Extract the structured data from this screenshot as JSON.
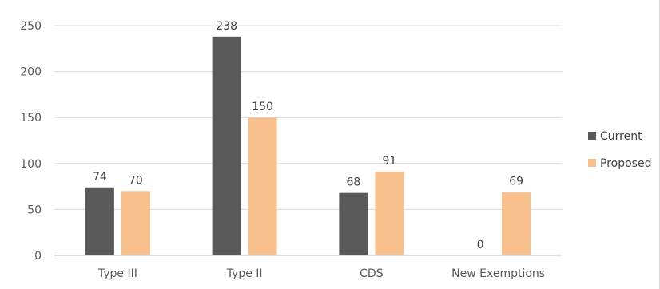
{
  "chart_data": {
    "type": "bar",
    "categories": [
      "Type III",
      "Type II",
      "CDS",
      "New Exemptions"
    ],
    "series": [
      {
        "name": "Current",
        "values": [
          74,
          238,
          68,
          0
        ],
        "color": "#595959"
      },
      {
        "name": "Proposed",
        "values": [
          70,
          150,
          91,
          69
        ],
        "color": "#f8c08c"
      }
    ],
    "title": "",
    "xlabel": "",
    "ylabel": "",
    "ylim": [
      0,
      250
    ],
    "yticks": [
      0,
      50,
      100,
      150,
      200,
      250
    ],
    "grid": true,
    "legend_position": "right",
    "gridline_color": "#d9d9d9",
    "axis_color": "#bfbfbf"
  }
}
